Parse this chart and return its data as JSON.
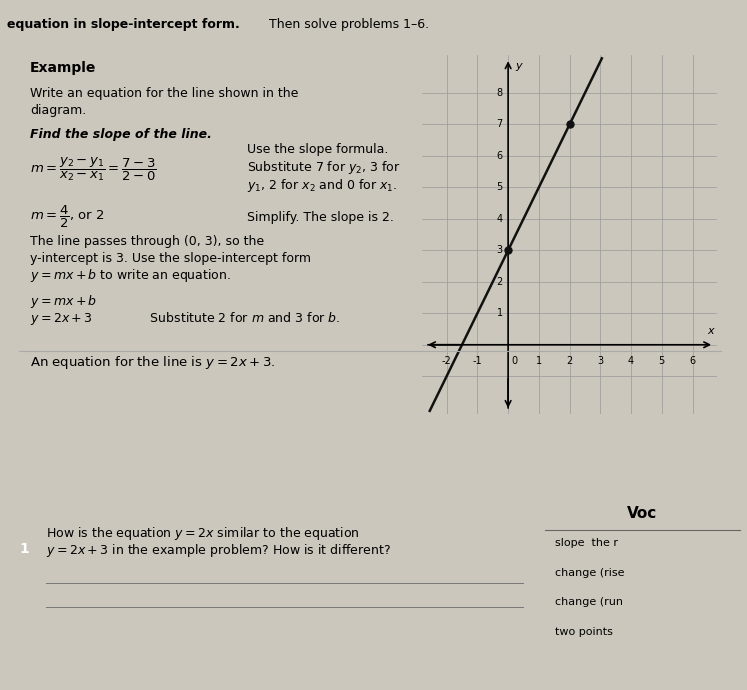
{
  "header_bold": "equation in slope-intercept form.",
  "header_normal": " Then solve problems 1–6.",
  "example_label": "Example",
  "example_text1": "Write an equation for the line shown in the",
  "example_text2": "diagram.",
  "find_slope_text": "Find the slope of the line.",
  "slope_formula_comment": "Use the slope formula.",
  "slope_formula_sub": "Substitute 7 for $y_2$, 3 for",
  "slope_formula_sub2": "$y_1$, 2 for $x_2$ and 0 for $x_1$.",
  "slope_simplify_comment": "Simplify. The slope is 2.",
  "passes_through": "The line passes through (0, 3), so the",
  "y_intercept_text": "y-intercept is 3. Use the slope-intercept form",
  "y_eq_mx_b_text": "$y = mx + b$ to write an equation.",
  "eq1": "$y = mx + b$",
  "eq2": "$y = 2x + 3$",
  "eq2_comment": "Substitute 2 for $m$ and 3 for $b$.",
  "final_answer": "An equation for the line is $y = 2x + 3$.",
  "q1_text1": "How is the equation $y = 2x$ similar to the equation",
  "q1_text2": "$y = 2x + 3$ in the example problem? How is it different?",
  "voc_title": "Voc",
  "voc_line1": "slope  the r",
  "voc_line2": "change (rise",
  "voc_line3": "change (run",
  "voc_line4": "two points",
  "bg_color": "#cbc7bc",
  "paper_color": "#e2ded4",
  "paper2_color": "#d8d4ca",
  "voc_color": "#d0ccc2",
  "grid_color": "#999999",
  "line_color": "#111111",
  "dot_color": "#111111",
  "graph_bg": "#e8e4d8",
  "graph_xlim": [
    -2.8,
    6.8
  ],
  "graph_ylim": [
    -2.2,
    9.2
  ],
  "dot1": [
    0,
    3
  ],
  "dot2": [
    2,
    7
  ]
}
